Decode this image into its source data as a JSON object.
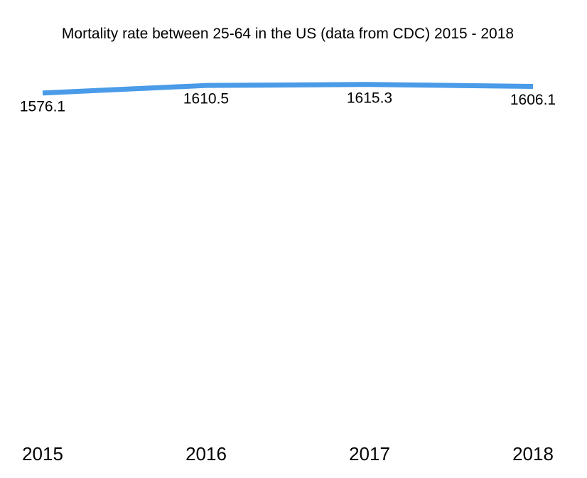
{
  "chart_data": {
    "type": "line",
    "title": "Mortality rate between 25-64 in the US (data from CDC) 2015 - 2018",
    "categories": [
      "2015",
      "2016",
      "2017",
      "2018"
    ],
    "values": [
      1576.1,
      1610.5,
      1615.3,
      1606.1
    ],
    "color": "#4a9be8",
    "ylim": [
      0,
      2000
    ]
  }
}
